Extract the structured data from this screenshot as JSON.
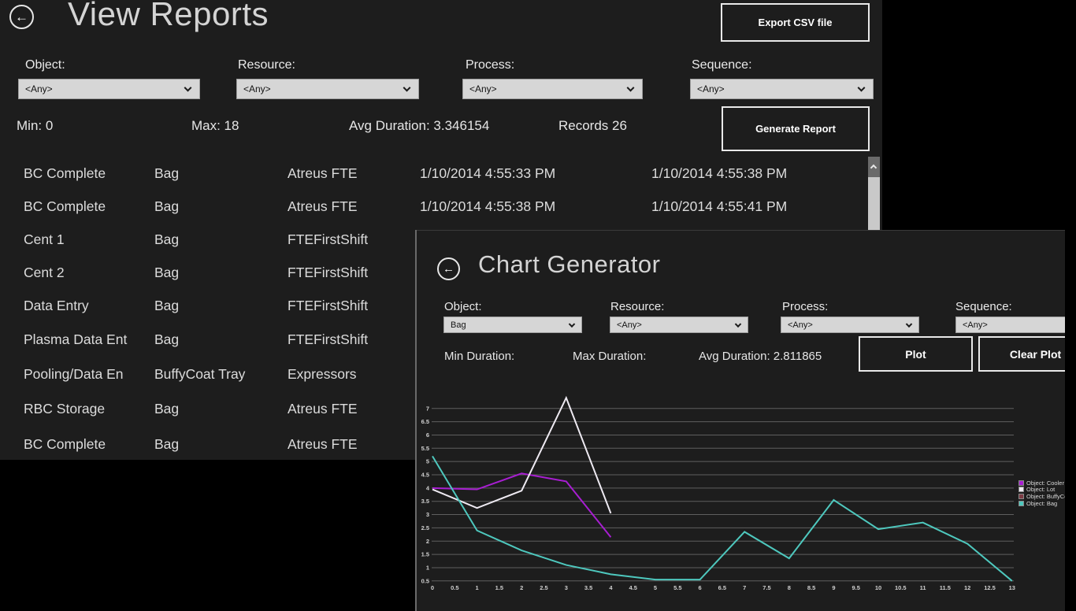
{
  "colors": {
    "desktop": "#000000",
    "window_bg": "#1d1d1d",
    "gridline": "#5f5f5f",
    "tick_text": "#d0d0d0"
  },
  "view_reports": {
    "title": "View Reports",
    "back_icon": "←",
    "export_button": "Export CSV file",
    "generate_button": "Generate Report",
    "filters": [
      {
        "label": "Object:",
        "value": "<Any>"
      },
      {
        "label": "Resource:",
        "value": "<Any>"
      },
      {
        "label": "Process:",
        "value": "<Any>"
      },
      {
        "label": "Sequence:",
        "value": "<Any>"
      }
    ],
    "stats": {
      "min": "Min: 0",
      "max": "Max: 18",
      "avg": "Avg Duration: 3.346154",
      "records": "Records 26"
    },
    "table_rows": [
      [
        "BC Complete",
        "Bag",
        "Atreus FTE",
        "1/10/2014 4:55:33 PM",
        "1/10/2014 4:55:38 PM"
      ],
      [
        "BC Complete",
        "Bag",
        "Atreus FTE",
        "1/10/2014 4:55:38 PM",
        "1/10/2014 4:55:41 PM"
      ],
      [
        "Cent 1",
        "Bag",
        "FTEFirstShift",
        "",
        ""
      ],
      [
        "Cent 2",
        "Bag",
        "FTEFirstShift",
        "",
        ""
      ],
      [
        "Data Entry",
        "Bag",
        "FTEFirstShift",
        "",
        ""
      ],
      [
        "Plasma Data Ent",
        "Bag",
        "FTEFirstShift",
        "",
        ""
      ],
      [
        "Pooling/Data En",
        "BuffyCoat Tray",
        "Expressors",
        "",
        ""
      ],
      [
        "RBC Storage",
        "Bag",
        "Atreus FTE",
        "",
        ""
      ],
      [
        "BC Complete",
        "Bag",
        "Atreus FTE",
        "",
        ""
      ]
    ]
  },
  "chart_generator": {
    "title": "Chart Generator",
    "back_icon": "←",
    "plot_button": "Plot",
    "clear_button": "Clear Plot",
    "filters": [
      {
        "label": "Object:",
        "value": "Bag"
      },
      {
        "label": "Resource:",
        "value": "<Any>"
      },
      {
        "label": "Process:",
        "value": "<Any>"
      },
      {
        "label": "Sequence:",
        "value": "<Any>"
      }
    ],
    "stats": {
      "min": "Min Duration:",
      "max": "Max Duration:",
      "avg": "Avg Duration: 2.811865"
    }
  },
  "chart_data": {
    "type": "line",
    "title": "",
    "xlabel": "",
    "ylabel": "",
    "xlim": [
      0,
      13
    ],
    "ylim": [
      0.5,
      7.5
    ],
    "grid": true,
    "legend_position": "right",
    "x_ticks": [
      0,
      0.5,
      1,
      1.5,
      2,
      2.5,
      3,
      3.5,
      4,
      4.5,
      5,
      5.5,
      6,
      6.5,
      7,
      7.5,
      8,
      8.5,
      9,
      9.5,
      10,
      10.5,
      11,
      11.5,
      12,
      12.5,
      13
    ],
    "y_ticks": [
      0.5,
      1,
      1.5,
      2,
      2.5,
      3,
      3.5,
      4,
      4.5,
      5,
      5.5,
      6,
      6.5,
      7
    ],
    "series": [
      {
        "name": "Object: Cooler",
        "color": "#a81ed2",
        "x": [
          0,
          1,
          2,
          3,
          4
        ],
        "values": [
          4.0,
          3.95,
          4.55,
          4.25,
          2.15
        ]
      },
      {
        "name": "Object: Lot",
        "color": "#eeeaf2",
        "x": [
          0,
          1,
          2,
          3,
          4
        ],
        "values": [
          3.95,
          3.25,
          3.9,
          7.4,
          3.05
        ]
      },
      {
        "name": "Object: BuffyCoat",
        "color": "#7d3b44",
        "x": [],
        "values": []
      },
      {
        "name": "Object: Bag",
        "color": "#4ec8be",
        "x": [
          0,
          1,
          2,
          3,
          4,
          5,
          6,
          7,
          8,
          9,
          10,
          11,
          12,
          13
        ],
        "values": [
          5.2,
          2.4,
          1.65,
          1.1,
          0.75,
          0.55,
          0.55,
          2.35,
          1.35,
          3.55,
          2.45,
          2.7,
          1.9,
          0.5
        ]
      }
    ]
  }
}
